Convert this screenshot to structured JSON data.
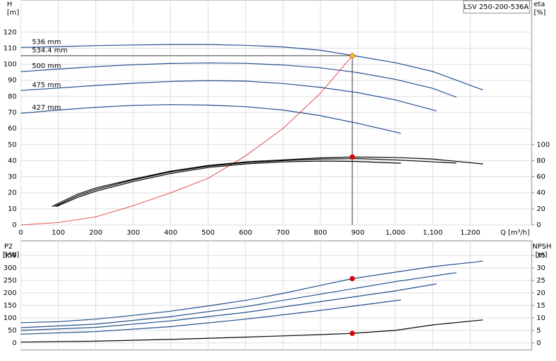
{
  "chart_data": [
    {
      "type": "line",
      "title": "LSV 250-200-536A",
      "y_label": "H",
      "y_unit": "[m]",
      "y2_label": "eta",
      "y2_unit": "[%]",
      "x_label": "Q [m³/h]",
      "xlim": [
        0,
        1364
      ],
      "ylim": [
        0,
        140
      ],
      "y2lim": [
        0,
        280
      ],
      "grid": true,
      "xticks": [
        0,
        100,
        200,
        300,
        400,
        500,
        600,
        700,
        800,
        900,
        {
          "value": 1000,
          "label": "1,000"
        },
        {
          "value": 1100,
          "label": "1,100"
        },
        {
          "value": 1200,
          "label": "1,200"
        }
      ],
      "yticks": [
        0,
        10,
        20,
        30,
        40,
        50,
        60,
        70,
        80,
        90,
        100,
        110,
        120
      ],
      "y2ticks": [
        0,
        20,
        40,
        60,
        80,
        100
      ],
      "series": [
        {
          "name": "536 mm",
          "color": "#1f4e8c",
          "x": [
            0,
            100,
            200,
            300,
            400,
            500,
            600,
            700,
            800,
            885,
            1000,
            1100,
            1234
          ],
          "values": [
            110.5,
            111,
            111.6,
            112,
            112.3,
            112.3,
            111.8,
            110.8,
            108.7,
            105.5,
            101,
            95.5,
            84
          ]
        },
        {
          "name": "534.4 mm",
          "color": "#555555",
          "x": [
            0,
            885
          ],
          "values": [
            105.3,
            105.3
          ]
        },
        {
          "name": "500 mm",
          "color": "#1f4e8c",
          "x": [
            0,
            100,
            200,
            300,
            400,
            500,
            600,
            700,
            800,
            900,
            1000,
            1100,
            1163
          ],
          "values": [
            95.4,
            97,
            98.5,
            99.7,
            100.5,
            100.8,
            100.6,
            99.5,
            97.8,
            94.8,
            90.6,
            85,
            79.5
          ]
        },
        {
          "name": "475 mm",
          "color": "#1f4e8c",
          "x": [
            0,
            100,
            200,
            300,
            400,
            500,
            600,
            700,
            800,
            900,
            1000,
            1110
          ],
          "values": [
            83.7,
            85.2,
            86.8,
            88.2,
            89.3,
            89.8,
            89.5,
            88,
            85.6,
            82.3,
            77.8,
            71
          ]
        },
        {
          "name": "427 mm",
          "color": "#1f4e8c",
          "x": [
            0,
            100,
            200,
            300,
            400,
            500,
            600,
            700,
            800,
            900,
            1015
          ],
          "values": [
            69.5,
            71.5,
            73.2,
            74.4,
            74.9,
            74.6,
            73.6,
            71.5,
            68,
            63.2,
            57
          ]
        },
        {
          "color": "#e02020",
          "x": [
            0,
            100,
            200,
            300,
            400,
            500,
            600,
            700,
            800,
            885
          ],
          "values": [
            0,
            1.5,
            5,
            12,
            20,
            29,
            43,
            60,
            82,
            105.3
          ]
        },
        {
          "color": "#000000",
          "axis": "y2",
          "x": [
            83,
            150,
            200,
            300,
            400,
            500,
            600,
            700,
            800,
            885,
            1000,
            1100,
            1234
          ],
          "values": [
            23,
            38,
            46,
            57,
            67,
            74,
            78.5,
            81,
            83.5,
            84.6,
            84,
            82,
            76
          ]
        },
        {
          "color": "#000000",
          "axis": "y2",
          "x": [
            90,
            150,
            200,
            300,
            400,
            500,
            600,
            700,
            800,
            900,
            1000,
            1163
          ],
          "values": [
            23,
            36,
            44,
            56,
            66,
            73,
            77.5,
            80,
            82,
            82.5,
            81,
            77
          ]
        },
        {
          "color": "#000000",
          "axis": "y2",
          "x": [
            95,
            150,
            200,
            300,
            400,
            500,
            600,
            700,
            800,
            900,
            1015
          ],
          "values": [
            23,
            34,
            42,
            54,
            64,
            71.5,
            76,
            78.5,
            79.5,
            79,
            76.8
          ]
        }
      ],
      "markers": [
        {
          "x": 885,
          "y": 105.3,
          "color": "#f5c518",
          "drop_line": true
        },
        {
          "x": 885,
          "y": 84.6,
          "axis": "y2",
          "color": "#e00000"
        }
      ]
    },
    {
      "type": "line",
      "y_label": "P2",
      "y_unit": "[kW]",
      "y2_label": "NPSH",
      "y2_unit": "[m]",
      "xlim": [
        0,
        1364
      ],
      "ylim": [
        -28,
        408
      ],
      "y2lim": [
        -2.8,
        40.8
      ],
      "grid": true,
      "yticks": [
        0,
        50,
        100,
        150,
        200,
        250,
        300,
        350
      ],
      "y2ticks": [
        0,
        5,
        10,
        15,
        20,
        25,
        30,
        35
      ],
      "series": [
        {
          "color": "#1f4e8c",
          "x": [
            0,
            100,
            200,
            300,
            400,
            500,
            600,
            700,
            800,
            885,
            1000,
            1100,
            1234
          ],
          "values": [
            81,
            85,
            95,
            110,
            127,
            148,
            170,
            198,
            230,
            257,
            283,
            305,
            327
          ]
        },
        {
          "color": "#1f4e8c",
          "x": [
            0,
            200,
            400,
            600,
            800,
            1000,
            1163
          ],
          "values": [
            61,
            75,
            105,
            145,
            195,
            245,
            281
          ]
        },
        {
          "color": "#1f4e8c",
          "x": [
            0,
            200,
            400,
            600,
            800,
            1000,
            1110
          ],
          "values": [
            50,
            62,
            88,
            122,
            165,
            208,
            236
          ]
        },
        {
          "color": "#1f4e8c",
          "x": [
            0,
            200,
            400,
            600,
            800,
            1015
          ],
          "values": [
            35,
            45,
            65,
            95,
            130,
            172
          ]
        },
        {
          "color": "#000000",
          "axis": "y2",
          "x": [
            0,
            200,
            400,
            600,
            800,
            885,
            1000,
            1100,
            1234
          ],
          "values": [
            0.3,
            0.7,
            1.4,
            2.3,
            3.3,
            3.8,
            5,
            7.2,
            9.2
          ]
        }
      ],
      "markers": [
        {
          "x": 885,
          "y": 257,
          "color": "#e00000"
        },
        {
          "x": 885,
          "y": 3.8,
          "axis": "y2",
          "color": "#e00000"
        }
      ]
    }
  ]
}
